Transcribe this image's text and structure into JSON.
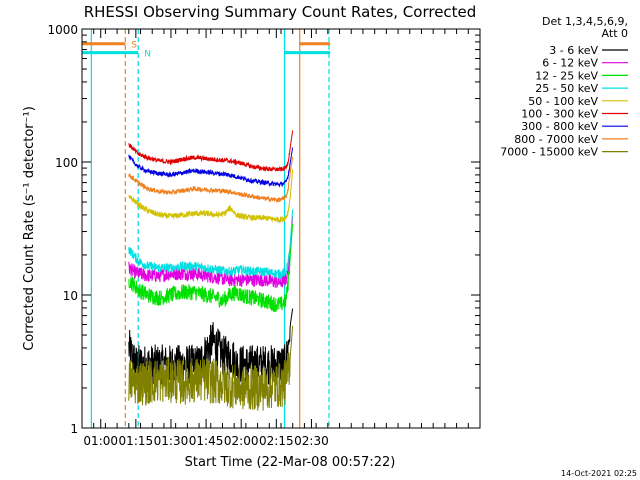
{
  "chart_data": {
    "type": "line",
    "title": "RHESSI Observing Summary Count Rates, Corrected",
    "xlabel": "Start Time (22-Mar-08 00:57:22)",
    "ylabel": "Corrected Count Rate (s⁻¹ detector⁻¹)",
    "yscale": "log",
    "ylim": [
      1,
      1000
    ],
    "xlim_minutes": [
      52,
      222
    ],
    "x_tick_minutes": [
      60,
      75,
      90,
      105,
      120,
      135,
      150
    ],
    "x_ticks": [
      "01:00",
      "01:15",
      "01:30",
      "01:45",
      "02:00",
      "02:15",
      "02:30"
    ],
    "y_ticks": [
      {
        "value": 1,
        "label": "1"
      },
      {
        "value": 10,
        "label": "10"
      },
      {
        "value": 100,
        "label": "100"
      },
      {
        "value": 1000,
        "label": "1000"
      }
    ],
    "legend_header": [
      "Det 1,3,4,5,6,9,",
      "Att 0"
    ],
    "legend_position": "right",
    "series": [
      {
        "name": "3 - 6 keV",
        "color": "#000000",
        "x": [
          72,
          75,
          80,
          85,
          90,
          95,
          100,
          102,
          104,
          106,
          108,
          110,
          112,
          114,
          116,
          118,
          120,
          125,
          130,
          135,
          137,
          139,
          140,
          141,
          142
        ],
        "y": [
          4,
          3,
          3,
          3,
          3,
          3,
          3,
          3,
          3.5,
          4,
          4.5,
          4,
          3.5,
          3.5,
          3.5,
          3,
          3,
          3,
          3,
          3,
          3,
          3,
          4,
          6,
          8
        ],
        "noise": 0.35
      },
      {
        "name": "6 - 12 keV",
        "color": "#e000e0",
        "x": [
          72,
          74,
          76,
          80,
          85,
          90,
          95,
          100,
          105,
          110,
          115,
          120,
          125,
          130,
          135,
          137,
          139,
          140,
          141,
          142
        ],
        "y": [
          16,
          15,
          14.5,
          14,
          14,
          14.5,
          14.5,
          14.5,
          14,
          13.5,
          13,
          13,
          13,
          13,
          12.5,
          12.5,
          13,
          15,
          22,
          40
        ],
        "noise": 0.12
      },
      {
        "name": "12 - 25 keV",
        "color": "#00e000",
        "x": [
          72,
          74,
          76,
          80,
          85,
          90,
          95,
          100,
          105,
          110,
          112,
          115,
          118,
          120,
          125,
          130,
          135,
          137,
          139,
          140,
          141,
          142
        ],
        "y": [
          13,
          12,
          11,
          10,
          9.5,
          10,
          10.5,
          10.5,
          10,
          9.5,
          9,
          10,
          10.5,
          10,
          9.5,
          9,
          8.5,
          8.5,
          9,
          12,
          20,
          35
        ],
        "noise": 0.14
      },
      {
        "name": "25 - 50 keV",
        "color": "#00e0e0",
        "x": [
          72,
          74,
          76,
          80,
          85,
          90,
          95,
          100,
          105,
          110,
          115,
          120,
          125,
          130,
          135,
          137,
          139,
          140,
          141,
          142
        ],
        "y": [
          22,
          20,
          18,
          16.5,
          16,
          16,
          16.5,
          16.5,
          16,
          15.5,
          15,
          15.5,
          15,
          15,
          14.5,
          14.5,
          15,
          17,
          25,
          45
        ],
        "noise": 0.08
      },
      {
        "name": "50 - 100 keV",
        "color": "#d0c000",
        "x": [
          72,
          74,
          76,
          80,
          85,
          90,
          95,
          100,
          105,
          110,
          113,
          115,
          116,
          118,
          120,
          125,
          130,
          135,
          137,
          139,
          140,
          141,
          142
        ],
        "y": [
          54,
          52,
          48,
          43,
          40,
          39,
          40,
          41,
          41,
          40,
          41,
          45,
          44,
          40,
          39,
          38,
          38,
          37,
          37,
          38,
          42,
          55,
          90
        ],
        "noise": 0.05
      },
      {
        "name": "100 - 300 keV",
        "color": "#e00000",
        "x": [
          72,
          74,
          76,
          80,
          85,
          90,
          95,
          100,
          105,
          110,
          115,
          120,
          125,
          130,
          135,
          137,
          139,
          140,
          141,
          142
        ],
        "y": [
          135,
          125,
          115,
          108,
          102,
          100,
          105,
          108,
          106,
          104,
          102,
          98,
          92,
          89,
          88,
          88,
          90,
          100,
          130,
          175
        ],
        "noise": 0.04
      },
      {
        "name": "300 - 800 keV",
        "color": "#0000e0",
        "x": [
          72,
          74,
          76,
          80,
          85,
          90,
          95,
          100,
          105,
          110,
          115,
          120,
          125,
          130,
          135,
          137,
          139,
          140,
          141,
          142
        ],
        "y": [
          110,
          100,
          92,
          85,
          82,
          80,
          83,
          86,
          84,
          82,
          80,
          76,
          72,
          70,
          68,
          68,
          70,
          78,
          100,
          130
        ],
        "noise": 0.04
      },
      {
        "name": "800 - 7000 keV",
        "color": "#f08020",
        "x": [
          72,
          74,
          76,
          80,
          85,
          90,
          95,
          100,
          105,
          110,
          115,
          120,
          125,
          130,
          135,
          137,
          139,
          140,
          141,
          142
        ],
        "y": [
          80,
          75,
          70,
          63,
          60,
          59,
          61,
          63,
          62,
          61,
          60,
          57,
          55,
          53,
          52,
          52,
          54,
          62,
          85,
          110
        ],
        "noise": 0.04
      },
      {
        "name": "7000 - 15000 keV",
        "color": "#808000",
        "x": [
          72,
          75,
          80,
          85,
          90,
          95,
          100,
          105,
          110,
          115,
          120,
          125,
          130,
          135,
          137,
          139,
          140,
          141,
          142
        ],
        "y": [
          2.3,
          2.2,
          2.2,
          2.3,
          2.3,
          2.2,
          2.3,
          2.3,
          2.2,
          2.1,
          2.0,
          2.0,
          2.0,
          2.1,
          2.1,
          2.2,
          2.6,
          3.5,
          6
        ],
        "noise": 0.4
      }
    ],
    "flag_bars": [
      {
        "label": "S",
        "color": "#f08020",
        "y_value": 775
      },
      {
        "label": "N",
        "color": "#00e0e0",
        "y_value": 665
      }
    ],
    "flag_segments": [
      {
        "label": "S",
        "start": 52,
        "end": 70.5
      },
      {
        "label": "S",
        "start": 145,
        "end": 158
      },
      {
        "label": "N",
        "start": 52,
        "end": 76
      },
      {
        "label": "N",
        "start": 138.5,
        "end": 158
      }
    ],
    "v_lines": [
      {
        "color": "#00e0e0",
        "x": 56,
        "style": "solid"
      },
      {
        "color": "#f08020",
        "x": 70.5,
        "style": "dashed"
      },
      {
        "color": "#00e0e0",
        "x": 76,
        "style": "dashed"
      },
      {
        "color": "#00e0e0",
        "x": 138.5,
        "style": "solid"
      },
      {
        "color": "#f08020",
        "x": 145,
        "style": "solid"
      },
      {
        "color": "#00e0e0",
        "x": 157.5,
        "style": "dashed"
      }
    ]
  },
  "footer": {
    "timestamp": "14-Oct-2021 02:25"
  }
}
